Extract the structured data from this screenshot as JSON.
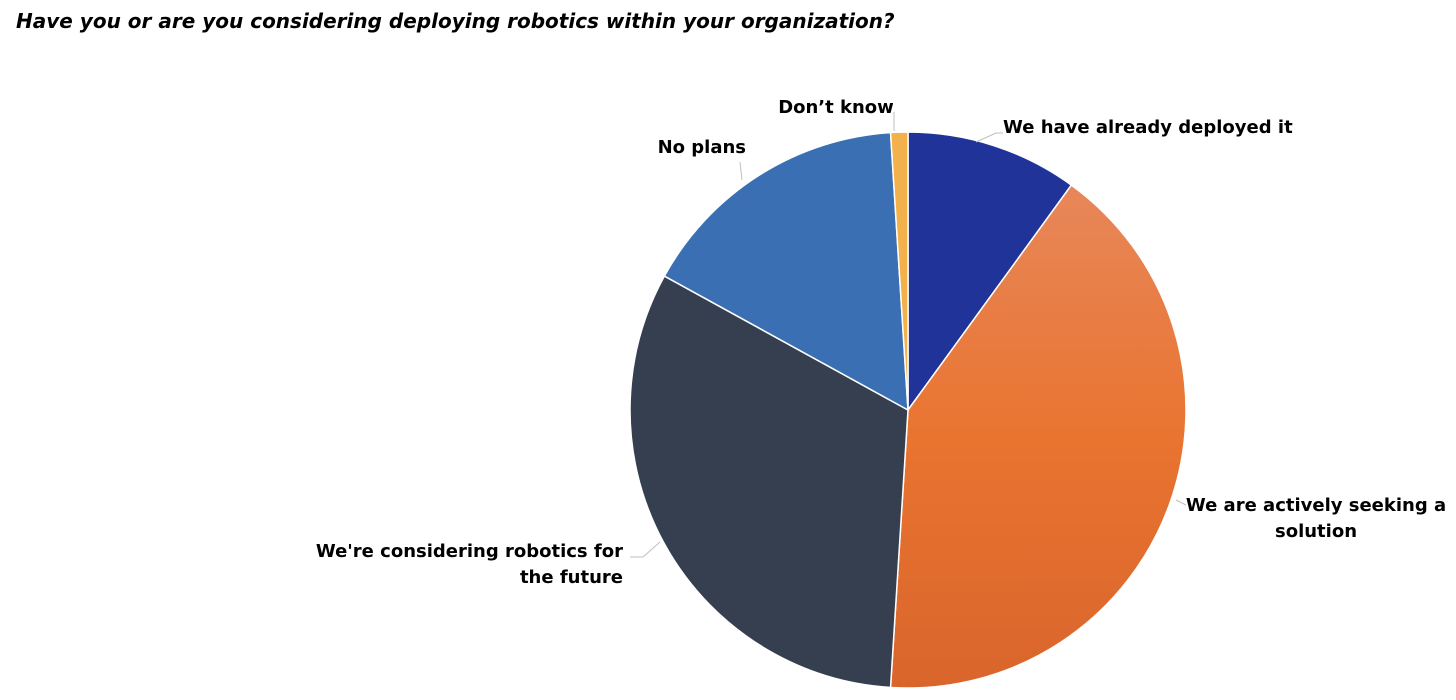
{
  "chart_data": {
    "type": "pie",
    "title": "Have you or are you considering deploying robotics within your organization?",
    "slices": [
      {
        "label": "We have already deployed it",
        "label_lines": [
          "We have already deployed it"
        ],
        "value": 10,
        "color": "#1F3399"
      },
      {
        "label": "We are actively seeking a solution",
        "label_lines": [
          "We are actively seeking a",
          "solution"
        ],
        "value": 41,
        "colors": [
          "#E8875A",
          "#E97430",
          "#D9652C"
        ]
      },
      {
        "label": "We're considering robotics for the future",
        "label_lines": [
          "We're considering robotics for",
          "the future"
        ],
        "value": 32,
        "color": "#363F4F"
      },
      {
        "label": "No plans",
        "label_lines": [
          "No plans"
        ],
        "value": 16,
        "color": "#3A70B3"
      },
      {
        "label": "Don’t know",
        "label_lines": [
          "Don’t know"
        ],
        "value": 1,
        "color": "#F2B14A"
      }
    ],
    "start_angle_deg": 0,
    "direction": "clockwise",
    "legend": "none",
    "label_position": "outside with leader lines"
  }
}
